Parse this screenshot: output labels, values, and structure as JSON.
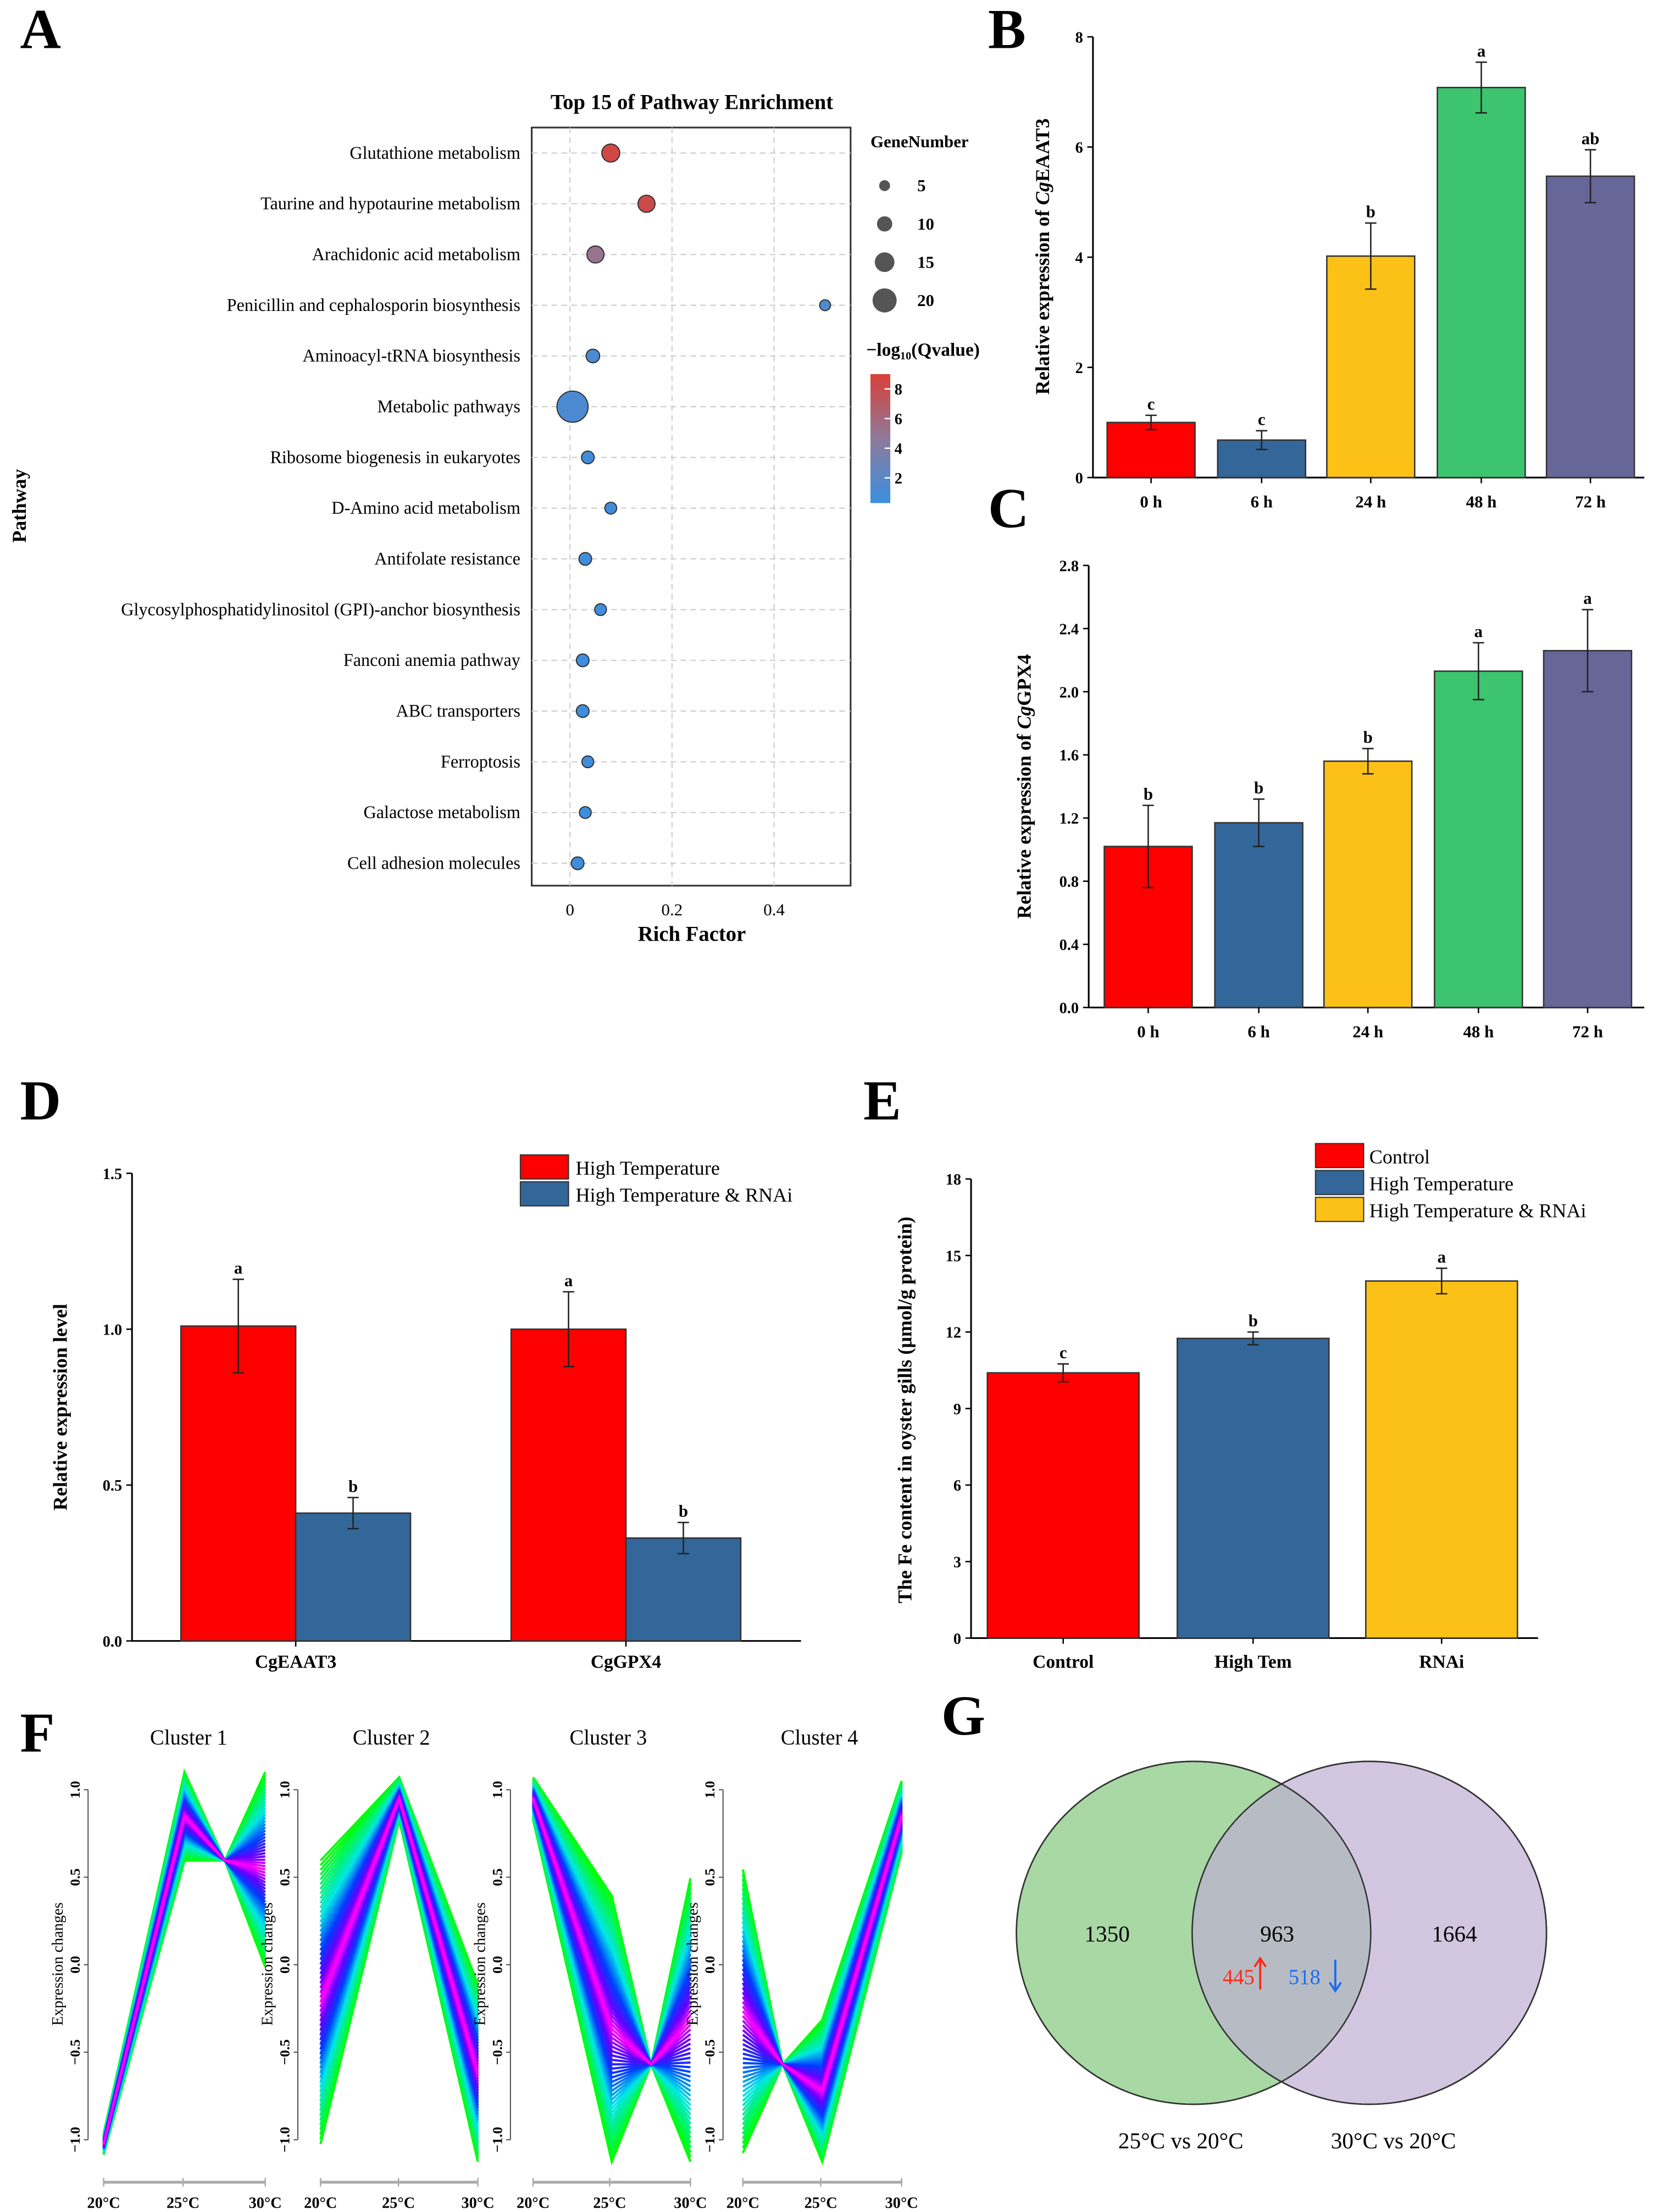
{
  "panel_letters": [
    "A",
    "B",
    "C",
    "D",
    "E",
    "F",
    "G"
  ],
  "chart_data": [
    {
      "id": "A",
      "type": "scatter",
      "title": "Top 15 of Pathway Enrichment",
      "xlabel": "Rich Factor",
      "ylabel": "Pathway",
      "xticks": [
        "0",
        "0.2",
        "0.4"
      ],
      "xtick_values": [
        0,
        0.2,
        0.4
      ],
      "xlim": [
        -0.07,
        0.55
      ],
      "size_legend_title": "GeneNumber",
      "size_legend": [
        5,
        10,
        15,
        20
      ],
      "color_legend_title": "−log₁₀(Qvalue)",
      "color_legend_ticks": [
        2,
        4,
        6,
        8
      ],
      "grid": true,
      "points": [
        {
          "pathway": "Glutathione metabolism",
          "rich_factor": 0.08,
          "gene_number": 13,
          "neg_log10_q": 8.5
        },
        {
          "pathway": "Taurine and hypotaurine metabolism",
          "rich_factor": 0.15,
          "gene_number": 12,
          "neg_log10_q": 8.3
        },
        {
          "pathway": "Arachidonic acid metabolism",
          "rich_factor": 0.05,
          "gene_number": 12,
          "neg_log10_q": 5.5
        },
        {
          "pathway": "Penicillin and cephalosporin biosynthesis",
          "rich_factor": 0.5,
          "gene_number": 5,
          "neg_log10_q": 2.0
        },
        {
          "pathway": "Aminoacyl-tRNA biosynthesis",
          "rich_factor": 0.045,
          "gene_number": 8,
          "neg_log10_q": 1.8
        },
        {
          "pathway": "Metabolic pathways",
          "rich_factor": 0.005,
          "gene_number": 28,
          "neg_log10_q": 1.8
        },
        {
          "pathway": "Ribosome biogenesis in eukaryotes",
          "rich_factor": 0.035,
          "gene_number": 7,
          "neg_log10_q": 1.3
        },
        {
          "pathway": "D-Amino acid metabolism",
          "rich_factor": 0.08,
          "gene_number": 6,
          "neg_log10_q": 1.3
        },
        {
          "pathway": "Antifolate resistance",
          "rich_factor": 0.03,
          "gene_number": 7,
          "neg_log10_q": 1.2
        },
        {
          "pathway": "Glycosylphosphatidylinositol (GPI)-anchor biosynthesis",
          "rich_factor": 0.06,
          "gene_number": 6,
          "neg_log10_q": 1.2
        },
        {
          "pathway": "Fanconi anemia pathway",
          "rich_factor": 0.025,
          "gene_number": 7,
          "neg_log10_q": 1.2
        },
        {
          "pathway": "ABC transporters",
          "rich_factor": 0.025,
          "gene_number": 7,
          "neg_log10_q": 1.2
        },
        {
          "pathway": "Ferroptosis",
          "rich_factor": 0.035,
          "gene_number": 6,
          "neg_log10_q": 1.2
        },
        {
          "pathway": "Galactose metabolism",
          "rich_factor": 0.03,
          "gene_number": 6,
          "neg_log10_q": 1.2
        },
        {
          "pathway": "Cell adhesion molecules",
          "rich_factor": 0.015,
          "gene_number": 7,
          "neg_log10_q": 1.2
        }
      ]
    },
    {
      "id": "B",
      "type": "bar",
      "ylabel_prefix": "Relative expression of ",
      "ylabel_italic": "Cg",
      "ylabel_suffix": "EAAT3",
      "ylim": [
        0,
        8
      ],
      "yticks": [
        "0",
        "2",
        "4",
        "6",
        "8"
      ],
      "categories": [
        "0 h",
        "6 h",
        "24 h",
        "48 h",
        "72 h"
      ],
      "values": [
        1.0,
        0.68,
        4.02,
        7.08,
        5.47
      ],
      "errors": [
        0.13,
        0.17,
        0.6,
        0.46,
        0.48
      ],
      "letters": [
        "c",
        "c",
        "b",
        "a",
        "ab"
      ],
      "colors": [
        "#ff0000",
        "#336699",
        "#fbc116",
        "#3cc46f",
        "#666699"
      ]
    },
    {
      "id": "C",
      "type": "bar",
      "ylabel_prefix": "Relative expression of ",
      "ylabel_italic": "Cg",
      "ylabel_suffix": "GPX4",
      "ylim": [
        0,
        2.8
      ],
      "yticks": [
        "0.0",
        "0.4",
        "0.8",
        "1.2",
        "1.6",
        "2.0",
        "2.4",
        "2.8"
      ],
      "categories": [
        "0 h",
        "6 h",
        "24 h",
        "48 h",
        "72 h"
      ],
      "values": [
        1.02,
        1.17,
        1.56,
        2.13,
        2.26
      ],
      "errors": [
        0.26,
        0.15,
        0.08,
        0.18,
        0.26
      ],
      "letters": [
        "b",
        "b",
        "b",
        "a",
        "a"
      ],
      "colors": [
        "#ff0000",
        "#336699",
        "#fbc116",
        "#3cc46f",
        "#666699"
      ]
    },
    {
      "id": "D",
      "type": "bar",
      "ylabel": "Relative expression level",
      "ylim": [
        0,
        1.5
      ],
      "yticks": [
        "0.0",
        "0.5",
        "1.0",
        "1.5"
      ],
      "categories": [
        "CgEAAT3",
        "CgGPX4"
      ],
      "series": [
        {
          "name": "High Temperature",
          "color": "#ff0000",
          "values": [
            1.01,
            1.0
          ],
          "errors": [
            0.15,
            0.12
          ],
          "letters": [
            "a",
            "a"
          ]
        },
        {
          "name": "High Temperature & RNAi",
          "color": "#336699",
          "values": [
            0.41,
            0.33
          ],
          "errors": [
            0.05,
            0.05
          ],
          "letters": [
            "b",
            "b"
          ]
        }
      ]
    },
    {
      "id": "E",
      "type": "bar",
      "ylabel": "The Fe content in oyster gills (μmol/g protein)",
      "ylim": [
        0,
        18
      ],
      "yticks": [
        "0",
        "3",
        "6",
        "9",
        "12",
        "15",
        "18"
      ],
      "categories": [
        "Control",
        "High Tem",
        "RNAi"
      ],
      "values": [
        10.4,
        11.75,
        14.0
      ],
      "errors": [
        0.35,
        0.25,
        0.5
      ],
      "letters": [
        "c",
        "b",
        "a"
      ],
      "colors": [
        "#ff0000",
        "#336699",
        "#fbc116"
      ],
      "legend": [
        "Control",
        "High Temperature",
        "High Temperature & RNAi"
      ]
    },
    {
      "id": "F",
      "type": "line",
      "ylabel": "Expression changes",
      "yticks": [
        "−1.0",
        "−0.5",
        "0.0",
        "0.5",
        "1.0"
      ],
      "xticks": [
        "20°C",
        "25°C",
        "30°C"
      ],
      "clusters": [
        {
          "title": "Cluster 1",
          "x": [
            0,
            1,
            1.5,
            2
          ],
          "center": [
            -1.0,
            0.85,
            0.6,
            0.55
          ],
          "spread": [
            0.06,
            0.25,
            0,
            0.55
          ]
        },
        {
          "title": "Cluster 2",
          "x": [
            0,
            1,
            2
          ],
          "center": [
            -0.2,
            0.95,
            -0.6
          ],
          "spread": [
            0.8,
            0.12,
            0.5
          ]
        },
        {
          "title": "Cluster 3",
          "x": [
            0,
            1,
            1.5,
            2
          ],
          "center": [
            0.95,
            -0.35,
            -0.55,
            -0.3
          ],
          "spread": [
            0.12,
            0.75,
            0,
            0.8
          ]
        },
        {
          "title": "Cluster 4",
          "x": [
            0,
            0.5,
            1,
            2
          ],
          "center": [
            -0.25,
            -0.55,
            -0.7,
            0.85
          ],
          "spread": [
            0.8,
            0,
            0.4,
            0.2
          ]
        }
      ]
    },
    {
      "id": "G",
      "type": "venn",
      "sets": [
        {
          "label": "25°C vs 20°C",
          "only": "1350",
          "color": "#a8d8a4"
        },
        {
          "label": "30°C vs 20°C",
          "only": "1664",
          "color": "#d3c6e0"
        }
      ],
      "intersection": "963",
      "up": "445",
      "down": "518",
      "up_color": "#ff2a1a",
      "down_color": "#1a6cf0",
      "intersection_color": "#b7bcc4"
    }
  ]
}
